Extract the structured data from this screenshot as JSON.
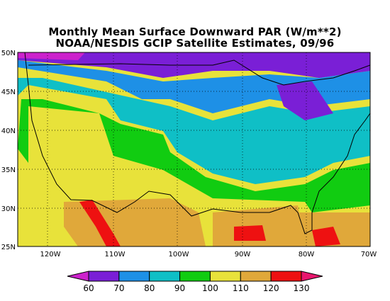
{
  "title": "Monthly Mean Surface Downward PAR (W/m**2)",
  "subtitle": "NOAA/NESDIS GCIP Satellite Estimates, 09/96",
  "lat_labels": [
    "50N",
    "45N",
    "40N",
    "35N",
    "30N",
    "25N"
  ],
  "lon_labels": [
    "120W",
    "110W",
    "100W",
    "90W",
    "80W",
    "70W"
  ],
  "colorbar": {
    "ticks": [
      "60",
      "70",
      "80",
      "90",
      "100",
      "110",
      "120",
      "130"
    ],
    "colors": [
      "#cc22cc",
      "#7a1fd6",
      "#1e90e6",
      "#0fbfc6",
      "#11cc11",
      "#e8e23a",
      "#e0a83a",
      "#ee1111",
      "#e8176e"
    ]
  }
}
